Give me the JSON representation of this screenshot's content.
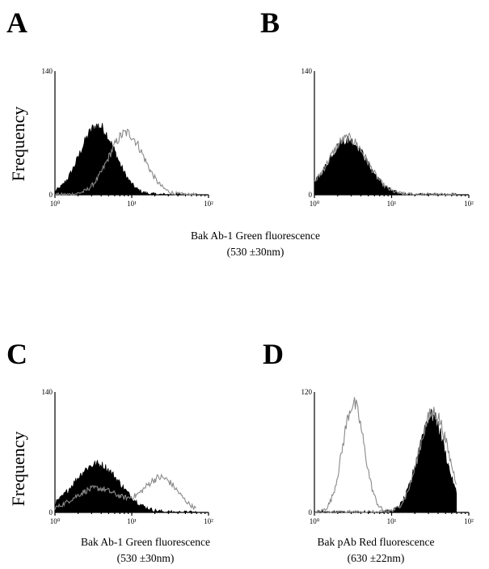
{
  "captions": {
    "top": [
      "Bak Ab-1 Green fluorescence",
      "(530 ±30nm)"
    ],
    "C": [
      "Bak Ab-1 Green fluorescence",
      "(530 ±30nm)"
    ],
    "D": [
      "Bak pAb Red  fluorescence",
      "(630 ±22nm)"
    ]
  },
  "chart_data": [
    {
      "panel": "A",
      "type": "area",
      "xscale": "log",
      "xlim": [
        1,
        100
      ],
      "ylim": [
        0,
        140
      ],
      "x_ticks": [
        "10⁰",
        "10¹",
        "10²"
      ],
      "y_ticks": [
        "0",
        "140"
      ],
      "ylabel": "Frequency",
      "series": [
        {
          "style": "filled-black",
          "peak_x": 3.6,
          "peak_y": 78,
          "sigma_log": 0.23
        },
        {
          "style": "open-gray",
          "peak_x": 8.5,
          "peak_y": 70,
          "sigma_log": 0.23
        }
      ]
    },
    {
      "panel": "B",
      "type": "area",
      "xscale": "log",
      "xlim": [
        1,
        100
      ],
      "ylim": [
        0,
        140
      ],
      "x_ticks": [
        "10⁰",
        "10¹",
        "10²"
      ],
      "y_ticks": [
        "0",
        "140"
      ],
      "series": [
        {
          "style": "filled-black",
          "peak_x": 2.7,
          "peak_y": 62,
          "sigma_log": 0.25
        },
        {
          "style": "open-gray",
          "peak_x": 2.7,
          "peak_y": 64,
          "sigma_log": 0.25
        }
      ]
    },
    {
      "panel": "C",
      "type": "area",
      "xscale": "log",
      "xlim": [
        1,
        100
      ],
      "ylim": [
        0,
        140
      ],
      "x_ticks": [
        "10⁰",
        "10¹",
        "10²"
      ],
      "y_ticks": [
        "0",
        "140"
      ],
      "ylabel": "Frequency",
      "series": [
        {
          "style": "filled-black",
          "peak_x": 3.5,
          "peak_y": 56,
          "sigma_log": 0.3
        },
        {
          "style": "open-gray-bimodal",
          "components": [
            {
              "peak_x": 3.5,
              "peak_y": 28,
              "sigma_log": 0.3
            },
            {
              "peak_x": 24,
              "peak_y": 40,
              "sigma_log": 0.22
            }
          ]
        }
      ]
    },
    {
      "panel": "D",
      "type": "area",
      "xscale": "log",
      "xlim": [
        1,
        100
      ],
      "ylim": [
        0,
        120
      ],
      "x_ticks": [
        "10⁰",
        "10¹",
        "10²"
      ],
      "y_ticks": [
        "0",
        "120"
      ],
      "series": [
        {
          "style": "open-gray",
          "peak_x": 3.2,
          "peak_y": 108,
          "sigma_log": 0.14
        },
        {
          "style": "filled-black",
          "peak_x": 33,
          "peak_y": 96,
          "sigma_log": 0.18
        },
        {
          "style": "open-gray",
          "peak_x": 35,
          "peak_y": 100,
          "sigma_log": 0.19
        }
      ]
    }
  ]
}
